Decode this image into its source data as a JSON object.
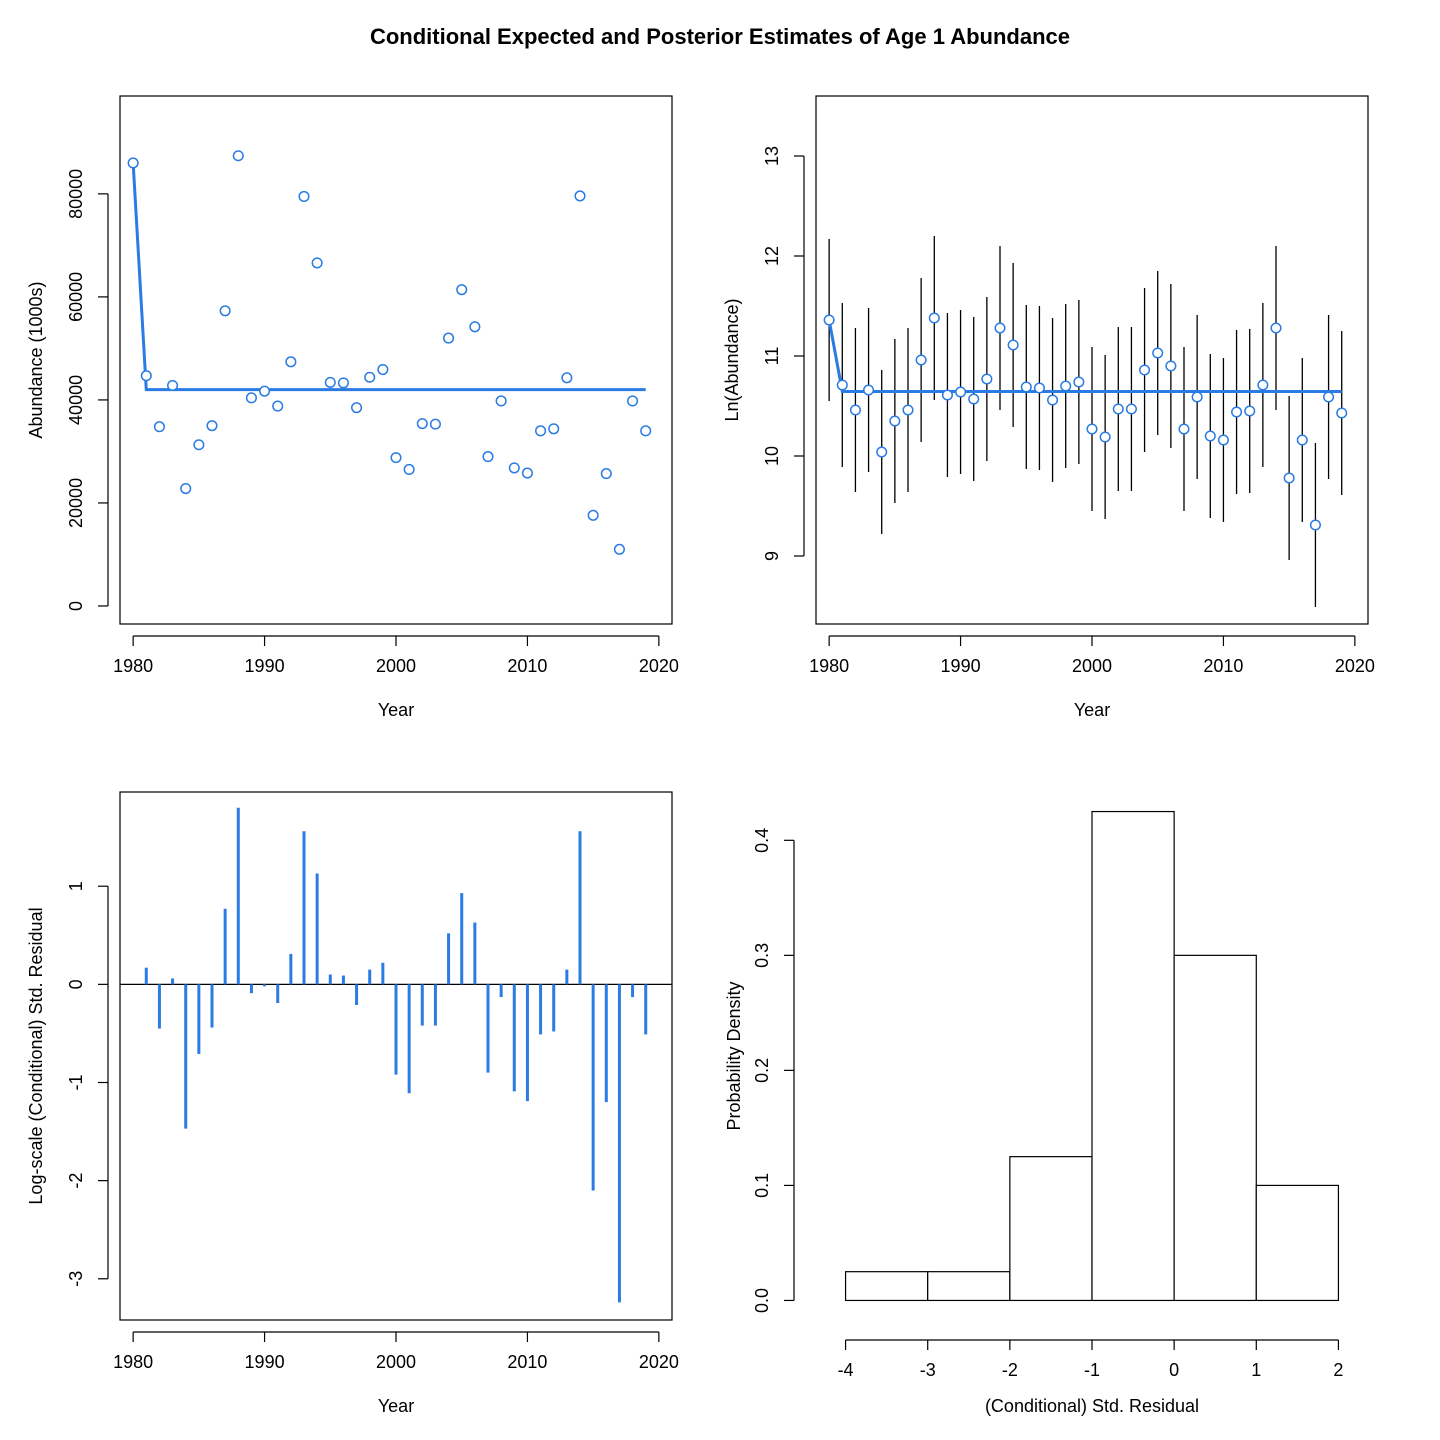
{
  "title": "Conditional Expected and Posterior Estimates of Age 1 Abundance",
  "colors": {
    "series": "#2A7BE4",
    "axis": "#000000",
    "bar_fill": "#FFFFFF"
  },
  "chart_data": [
    {
      "type": "scatter",
      "xlabel": "Year",
      "ylabel": "Abundance (1000s)",
      "xlim": [
        1979,
        2021
      ],
      "ylim": [
        -3500,
        99000
      ],
      "x_ticks": [
        1980,
        1990,
        2000,
        2010,
        2020
      ],
      "y_ticks": [
        0,
        20000,
        40000,
        60000,
        80000
      ],
      "x": [
        1980,
        1981,
        1982,
        1983,
        1984,
        1985,
        1986,
        1987,
        1988,
        1989,
        1990,
        1991,
        1992,
        1993,
        1994,
        1995,
        1996,
        1997,
        1998,
        1999,
        2000,
        2001,
        2002,
        2003,
        2004,
        2005,
        2006,
        2007,
        2008,
        2009,
        2010,
        2011,
        2012,
        2013,
        2014,
        2015,
        2016,
        2017,
        2018,
        2019
      ],
      "points": [
        86000,
        44700,
        34800,
        42800,
        22800,
        31300,
        35000,
        57300,
        87400,
        40400,
        41700,
        38800,
        47400,
        79500,
        66600,
        43400,
        43300,
        38500,
        44400,
        45900,
        28800,
        26500,
        35400,
        35300,
        52000,
        61400,
        54200,
        29000,
        39800,
        26800,
        25800,
        34000,
        34400,
        44300,
        79600,
        17600,
        25700,
        11000,
        39800,
        34000
      ],
      "expected_line": {
        "x": [
          1980,
          1981,
          2019
        ],
        "y": [
          86000,
          42000,
          42000
        ]
      }
    },
    {
      "type": "scatter",
      "xlabel": "Year",
      "ylabel": "Ln(Abundance)",
      "xlim": [
        1979,
        2021
      ],
      "ylim": [
        8.32,
        13.6
      ],
      "x_ticks": [
        1980,
        1990,
        2000,
        2010,
        2020
      ],
      "y_ticks": [
        9,
        10,
        11,
        12,
        13
      ],
      "x": [
        1980,
        1981,
        1982,
        1983,
        1984,
        1985,
        1986,
        1987,
        1988,
        1989,
        1990,
        1991,
        1992,
        1993,
        1994,
        1995,
        1996,
        1997,
        1998,
        1999,
        2000,
        2001,
        2002,
        2003,
        2004,
        2005,
        2006,
        2007,
        2008,
        2009,
        2010,
        2011,
        2012,
        2013,
        2014,
        2015,
        2016,
        2017,
        2018,
        2019
      ],
      "points": [
        11.36,
        10.71,
        10.46,
        10.66,
        10.04,
        10.35,
        10.46,
        10.96,
        11.38,
        10.61,
        10.64,
        10.57,
        10.77,
        11.28,
        11.11,
        10.69,
        10.68,
        10.56,
        10.7,
        10.74,
        10.27,
        10.19,
        10.47,
        10.47,
        10.86,
        11.03,
        10.9,
        10.27,
        10.59,
        10.2,
        10.16,
        10.44,
        10.45,
        10.71,
        11.28,
        9.78,
        10.16,
        9.31,
        10.59,
        10.43
      ],
      "upper": [
        12.17,
        11.53,
        11.28,
        11.48,
        10.86,
        11.17,
        11.28,
        11.78,
        12.2,
        11.43,
        11.46,
        11.39,
        11.59,
        12.1,
        11.93,
        11.51,
        11.5,
        11.38,
        11.52,
        11.56,
        11.09,
        11.01,
        11.29,
        11.29,
        11.68,
        11.85,
        11.72,
        11.09,
        11.41,
        11.02,
        10.98,
        11.26,
        11.27,
        11.53,
        12.1,
        10.6,
        10.98,
        10.13,
        11.41,
        11.25
      ],
      "lower": [
        10.55,
        9.89,
        9.64,
        9.84,
        9.22,
        9.53,
        9.64,
        10.14,
        10.56,
        9.79,
        9.82,
        9.75,
        9.95,
        10.46,
        10.29,
        9.87,
        9.86,
        9.74,
        9.88,
        9.92,
        9.45,
        9.37,
        9.65,
        9.65,
        10.04,
        10.21,
        10.08,
        9.45,
        9.77,
        9.38,
        9.34,
        9.62,
        9.63,
        9.89,
        10.46,
        8.96,
        9.34,
        8.49,
        9.77,
        9.61
      ],
      "expected_line": {
        "x": [
          1980,
          1981,
          2019
        ],
        "y": [
          11.36,
          10.645,
          10.645
        ]
      }
    },
    {
      "type": "bar",
      "xlabel": "Year",
      "ylabel": "Log-scale (Conditional) Std. Residual",
      "xlim": [
        1979,
        2021
      ],
      "ylim": [
        -3.42,
        1.96
      ],
      "x_ticks": [
        1980,
        1990,
        2000,
        2010,
        2020
      ],
      "y_ticks": [
        -3,
        -2,
        -1,
        0,
        1
      ],
      "x": [
        1980,
        1981,
        1982,
        1983,
        1984,
        1985,
        1986,
        1987,
        1988,
        1989,
        1990,
        1991,
        1992,
        1993,
        1994,
        1995,
        1996,
        1997,
        1998,
        1999,
        2000,
        2001,
        2002,
        2003,
        2004,
        2005,
        2006,
        2007,
        2008,
        2009,
        2010,
        2011,
        2012,
        2013,
        2014,
        2015,
        2016,
        2017,
        2018,
        2019
      ],
      "values": [
        0.0,
        0.17,
        -0.45,
        0.06,
        -1.47,
        -0.71,
        -0.44,
        0.77,
        1.8,
        -0.09,
        -0.02,
        -0.19,
        0.31,
        1.56,
        1.13,
        0.1,
        0.09,
        -0.21,
        0.15,
        0.22,
        -0.92,
        -1.11,
        -0.42,
        -0.42,
        0.52,
        0.93,
        0.63,
        -0.9,
        -0.13,
        -1.09,
        -1.19,
        -0.51,
        -0.48,
        0.15,
        1.56,
        -2.1,
        -1.2,
        -3.24,
        -0.13,
        -0.51
      ]
    },
    {
      "type": "bar",
      "xlabel": "(Conditional) Std. Residual",
      "ylabel": "Probability Density",
      "xlim": [
        -4.36,
        2.36
      ],
      "ylim": [
        -0.017,
        0.442
      ],
      "x_ticks": [
        -4,
        -3,
        -2,
        -1,
        0,
        1,
        2
      ],
      "y_ticks": [
        0.0,
        0.1,
        0.2,
        0.3,
        0.4
      ],
      "bin_edges": [
        -4,
        -3,
        -2,
        -1,
        0,
        1,
        2
      ],
      "values": [
        0.025,
        0.025,
        0.125,
        0.425,
        0.3,
        0.1
      ]
    }
  ]
}
